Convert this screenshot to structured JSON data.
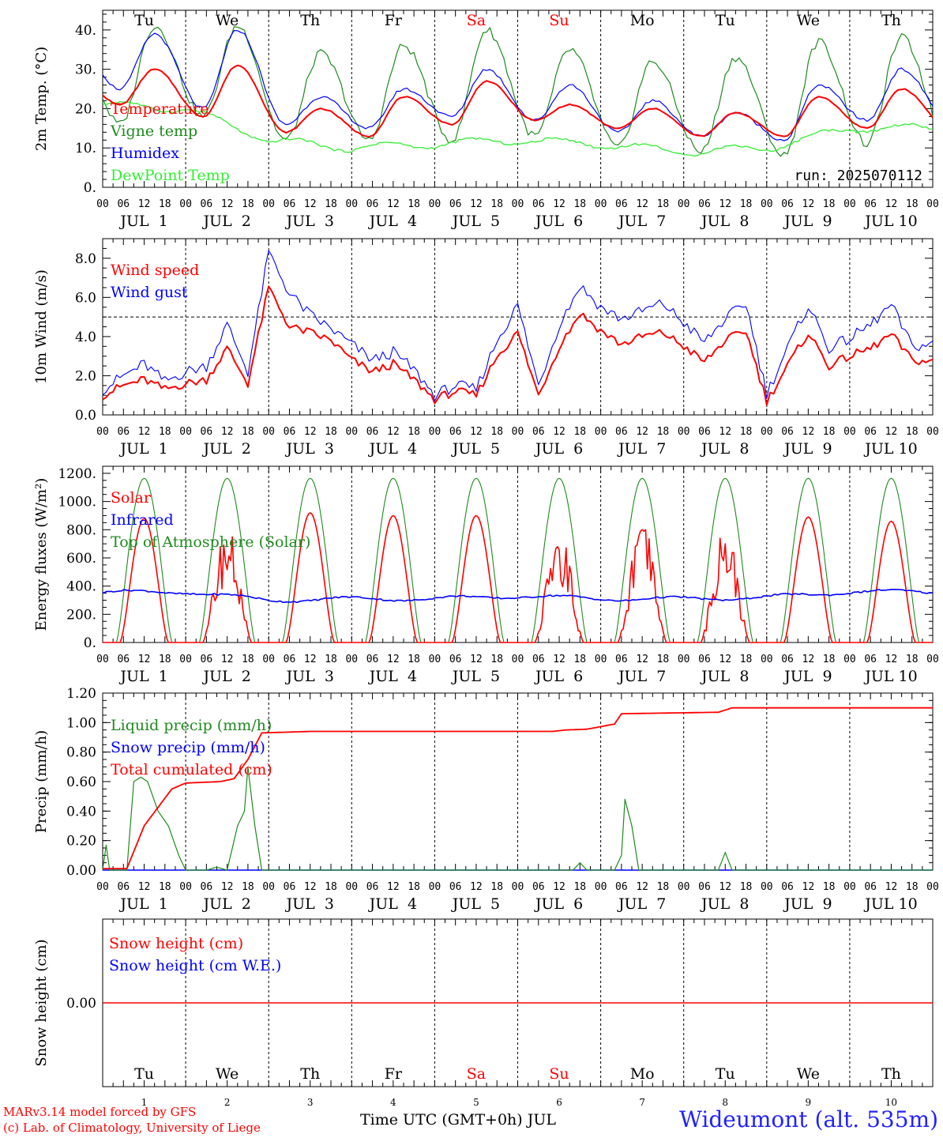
{
  "run_label": "run: 2025070112",
  "footer": {
    "model": "MARv3.14 model forced by GFS",
    "lab": "(c) Lab. of Climatology, University of Liege",
    "time_label": "Time UTC (GMT+0h) JUL",
    "station": "Wideumont (alt. 535m)"
  },
  "x_axis": {
    "days": [
      "Tu",
      "We",
      "Th",
      "Fr",
      "Sa",
      "Su",
      "Mo",
      "Tu",
      "We",
      "Th"
    ],
    "weekend_flags": [
      false,
      false,
      false,
      false,
      true,
      true,
      false,
      false,
      false,
      false
    ],
    "dates": [
      "JUL  1",
      "JUL  2",
      "JUL  3",
      "JUL  4",
      "JUL  5",
      "JUL  6",
      "JUL  7",
      "JUL  8",
      "JUL  9",
      "JUL 10"
    ],
    "day_numbers": [
      "1",
      "2",
      "3",
      "4",
      "5",
      "6",
      "7",
      "8",
      "9",
      "10"
    ],
    "hour_ticks": [
      "00",
      "06",
      "12",
      "18"
    ],
    "end_tick": "00"
  },
  "colors": {
    "red": "#ff0000",
    "green": "#1f8a1f",
    "blue": "#0000ff",
    "lightgreen": "#33ee33"
  },
  "chart_data": [
    {
      "type": "line",
      "ylabel": "2m Temp. (°C)",
      "ylim": [
        0,
        45
      ],
      "yticks": [
        "0.",
        "10.",
        "20.",
        "30.",
        "40."
      ],
      "x_range_hours": [
        0,
        240
      ],
      "series": [
        {
          "name": "Temperature",
          "color": "red",
          "kind": "temp"
        },
        {
          "name": "Vigne temp",
          "color": "green",
          "kind": "vigne"
        },
        {
          "name": "Humidex",
          "color": "blue",
          "kind": "humidex"
        },
        {
          "name": "DewPoint Temp",
          "color": "lightgreen",
          "kind": "dew"
        }
      ],
      "daily": {
        "temp_min": [
          21,
          18,
          14,
          13,
          16,
          17,
          15,
          13,
          13,
          15
        ],
        "temp_max": [
          30,
          31,
          20,
          23,
          27,
          21,
          20,
          19,
          23,
          25
        ],
        "vigne_min": [
          16,
          18,
          12,
          12,
          12,
          13,
          10,
          9,
          8,
          11
        ],
        "vigne_max": [
          41,
          41,
          34,
          36,
          40,
          35,
          32,
          33,
          37,
          38
        ],
        "humidex_min": [
          25,
          20,
          16,
          15,
          18,
          17,
          14,
          13,
          12,
          17
        ],
        "humidex_max": [
          39,
          40,
          23,
          25,
          30,
          26,
          22,
          19,
          26,
          30
        ],
        "dew_mean": [
          21,
          20,
          12,
          10,
          11,
          12,
          11,
          9,
          10,
          15
        ]
      }
    },
    {
      "type": "line",
      "ylabel": "10m Wind (m/s)",
      "ylim": [
        0,
        9
      ],
      "yticks": [
        "0.0",
        "2.0",
        "4.0",
        "6.0",
        "8.0"
      ],
      "reference_line": 5,
      "series": [
        {
          "name": "Wind speed",
          "color": "red"
        },
        {
          "name": "Wind gust",
          "color": "blue"
        }
      ],
      "x_hours": [
        0,
        6,
        12,
        18,
        24,
        30,
        36,
        42,
        48,
        54,
        60,
        66,
        72,
        78,
        84,
        90,
        96,
        102,
        108,
        114,
        120,
        126,
        132,
        138,
        144,
        150,
        156,
        162,
        168,
        174,
        180,
        186,
        192,
        198,
        204,
        210,
        216,
        222,
        228,
        234,
        240
      ],
      "speed": [
        1.0,
        1.5,
        1.8,
        1.3,
        1.6,
        1.8,
        3.4,
        1.6,
        6.5,
        4.5,
        4.2,
        3.8,
        2.8,
        2.2,
        2.6,
        1.8,
        0.8,
        1.2,
        1.0,
        3.0,
        4.2,
        1.0,
        3.5,
        5.2,
        4.3,
        3.6,
        4.0,
        4.2,
        3.5,
        2.7,
        3.8,
        4.3,
        0.7,
        2.5,
        4.2,
        2.5,
        3.0,
        3.4,
        4.1,
        2.8,
        2.7
      ],
      "gust": [
        1.3,
        2.0,
        2.6,
        1.7,
        2.2,
        2.5,
        4.6,
        2.2,
        8.3,
        6.2,
        5.1,
        4.4,
        3.6,
        2.8,
        3.2,
        2.3,
        1.0,
        1.5,
        1.3,
        3.8,
        5.6,
        1.5,
        4.6,
        6.6,
        5.5,
        4.9,
        5.3,
        5.7,
        4.7,
        3.7,
        4.9,
        5.7,
        1.1,
        3.4,
        5.6,
        3.4,
        3.9,
        4.6,
        5.6,
        3.5,
        3.6
      ]
    },
    {
      "type": "line",
      "ylabel": "Energy fluxes (W/m²)",
      "ylim": [
        0,
        1250
      ],
      "yticks": [
        "0.",
        "200.",
        "400.",
        "600.",
        "800.",
        "1000.",
        "1200."
      ],
      "series": [
        {
          "name": "Solar",
          "color": "red"
        },
        {
          "name": "Infrared",
          "color": "blue"
        },
        {
          "name": "Top of Atmosphere (Solar)",
          "color": "green"
        }
      ],
      "toa_peak": 1165,
      "solar_peak": [
        880,
        830,
        920,
        900,
        900,
        820,
        860,
        850,
        890,
        860
      ],
      "infrared_mean": [
        355,
        360,
        300,
        310,
        310,
        330,
        310,
        310,
        320,
        360
      ]
    },
    {
      "type": "line",
      "ylabel": "Precip (mm/h)",
      "ylim": [
        0,
        1.2
      ],
      "yticks": [
        "0.00",
        "0.20",
        "0.40",
        "0.60",
        "0.80",
        "1.00",
        "1.20"
      ],
      "series": [
        {
          "name": "Liquid precip (mm/h)",
          "color": "green"
        },
        {
          "name": "Snow precip (mm/h)",
          "color": "blue"
        },
        {
          "name": "Total cumulated (cm)",
          "color": "red"
        }
      ],
      "liquid_points": [
        [
          0,
          0
        ],
        [
          1,
          0.17
        ],
        [
          2,
          0
        ],
        [
          7,
          0
        ],
        [
          9,
          0.6
        ],
        [
          11,
          0.63
        ],
        [
          13,
          0.6
        ],
        [
          16,
          0.4
        ],
        [
          19,
          0.3
        ],
        [
          22,
          0.1
        ],
        [
          24,
          0
        ],
        [
          30,
          0
        ],
        [
          33,
          0.02
        ],
        [
          36,
          0
        ],
        [
          39,
          0.3
        ],
        [
          41,
          0.4
        ],
        [
          42,
          0.7
        ],
        [
          44,
          0.3
        ],
        [
          46,
          0
        ],
        [
          136,
          0
        ],
        [
          138,
          0.05
        ],
        [
          140,
          0
        ],
        [
          148,
          0
        ],
        [
          150,
          0.1
        ],
        [
          151,
          0.48
        ],
        [
          153,
          0.3
        ],
        [
          155,
          0
        ],
        [
          178,
          0
        ],
        [
          180,
          0.12
        ],
        [
          182,
          0
        ],
        [
          240,
          0
        ]
      ],
      "cumulative_points": [
        [
          0,
          0.01
        ],
        [
          7,
          0.01
        ],
        [
          12,
          0.3
        ],
        [
          20,
          0.55
        ],
        [
          24,
          0.59
        ],
        [
          34,
          0.6
        ],
        [
          38,
          0.62
        ],
        [
          42,
          0.75
        ],
        [
          46,
          0.93
        ],
        [
          60,
          0.94
        ],
        [
          130,
          0.94
        ],
        [
          134,
          0.95
        ],
        [
          140,
          0.955
        ],
        [
          148,
          0.99
        ],
        [
          150,
          1.06
        ],
        [
          178,
          1.07
        ],
        [
          182,
          1.1
        ],
        [
          240,
          1.1
        ]
      ]
    },
    {
      "type": "line",
      "ylabel": "Snow height (cm)",
      "ylim": [
        -1,
        1
      ],
      "yticks": [
        "0.00"
      ],
      "series": [
        {
          "name": "Snow height (cm)",
          "color": "red"
        },
        {
          "name": "Snow height (cm W.E.)",
          "color": "blue"
        }
      ],
      "values": [
        0,
        0
      ]
    }
  ]
}
